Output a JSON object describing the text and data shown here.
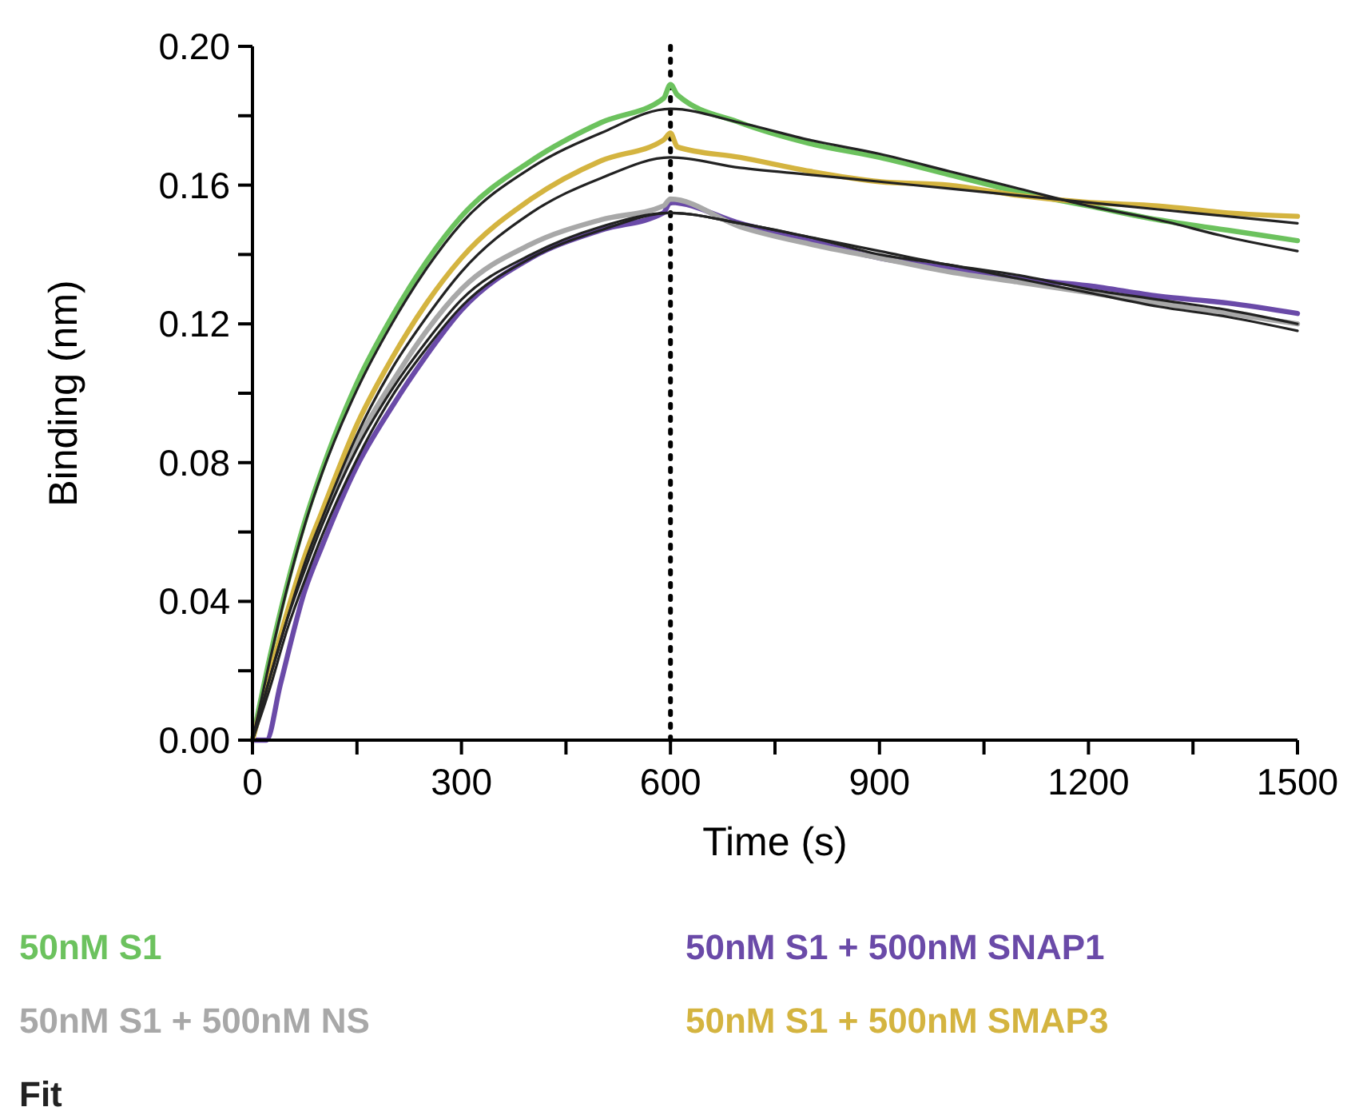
{
  "chart_data": {
    "type": "line",
    "xlabel": "Time (s)",
    "ylabel": "Binding (nm)",
    "xlim": [
      0,
      1500
    ],
    "ylim": [
      0,
      0.2
    ],
    "xticks": [
      0,
      {
        "value": 150,
        "label": null
      },
      300,
      {
        "value": 450,
        "label": null
      },
      600,
      {
        "value": 750,
        "label": null
      },
      900,
      {
        "value": 1050,
        "label": null
      },
      1200,
      {
        "value": 1350,
        "label": null
      },
      1500
    ],
    "yticks": [
      {
        "value": 0,
        "label": "0.00"
      },
      {
        "value": 0.02,
        "label": null
      },
      {
        "value": 0.04,
        "label": "0.04"
      },
      {
        "value": 0.06,
        "label": null
      },
      {
        "value": 0.08,
        "label": "0.08"
      },
      {
        "value": 0.1,
        "label": null
      },
      {
        "value": 0.12,
        "label": "0.12"
      },
      {
        "value": 0.14,
        "label": null
      },
      {
        "value": 0.16,
        "label": "0.16"
      },
      {
        "value": 0.18,
        "label": null
      },
      {
        "value": 0.2,
        "label": "0.20"
      }
    ],
    "grid": false,
    "legend": "bottom",
    "marker": "none",
    "line_style": "solid",
    "ref_lines": [
      {
        "axis": "x",
        "value": 600,
        "color": "#000000",
        "line_style": "dotted"
      }
    ],
    "series": [
      {
        "name": "50nM S1",
        "color": "#6cc25e",
        "x": [
          0,
          25,
          50,
          75,
          100,
          150,
          200,
          250,
          300,
          400,
          500,
          590,
          600,
          610,
          700,
          800,
          900,
          1000,
          1100,
          1200,
          1300,
          1400,
          1500
        ],
        "values": [
          0,
          0.024,
          0.045,
          0.063,
          0.078,
          0.103,
          0.122,
          0.138,
          0.151,
          0.167,
          0.178,
          0.185,
          0.189,
          0.186,
          0.178,
          0.172,
          0.168,
          0.163,
          0.158,
          0.154,
          0.15,
          0.147,
          0.144
        ]
      },
      {
        "name": "50nM S1 + 500nM SNAP1",
        "color": "#6a4aa8",
        "x": [
          0,
          20,
          40,
          75,
          100,
          150,
          200,
          250,
          300,
          400,
          500,
          590,
          600,
          700,
          800,
          900,
          1000,
          1100,
          1200,
          1300,
          1400,
          1500
        ],
        "values": [
          0,
          0,
          0.016,
          0.043,
          0.056,
          0.079,
          0.096,
          0.111,
          0.124,
          0.139,
          0.147,
          0.152,
          0.155,
          0.149,
          0.144,
          0.139,
          0.136,
          0.133,
          0.131,
          0.128,
          0.126,
          0.123
        ]
      },
      {
        "name": "50nM S1 + 500nM NS",
        "color": "#a8a8a8",
        "x": [
          0,
          25,
          50,
          75,
          100,
          150,
          200,
          250,
          300,
          400,
          500,
          590,
          600,
          700,
          800,
          900,
          1000,
          1100,
          1200,
          1300,
          1400,
          1500
        ],
        "values": [
          0,
          0.019,
          0.036,
          0.051,
          0.063,
          0.086,
          0.103,
          0.118,
          0.13,
          0.143,
          0.15,
          0.154,
          0.156,
          0.148,
          0.143,
          0.139,
          0.135,
          0.132,
          0.129,
          0.126,
          0.123,
          0.12
        ]
      },
      {
        "name": "50nM S1 + 500nM SMAP3",
        "color": "#d4b440",
        "x": [
          0,
          25,
          50,
          75,
          100,
          150,
          200,
          250,
          300,
          400,
          500,
          590,
          600,
          610,
          700,
          800,
          900,
          1000,
          1100,
          1200,
          1300,
          1400,
          1500
        ],
        "values": [
          0,
          0.019,
          0.037,
          0.053,
          0.066,
          0.091,
          0.11,
          0.126,
          0.139,
          0.156,
          0.167,
          0.173,
          0.175,
          0.171,
          0.168,
          0.164,
          0.161,
          0.16,
          0.157,
          0.155,
          0.154,
          0.152,
          0.151
        ]
      },
      {
        "name": "Fit",
        "color": "#222222",
        "x": [
          0,
          25,
          50,
          75,
          100,
          150,
          200,
          250,
          300,
          400,
          500,
          600,
          700,
          800,
          900,
          1000,
          1100,
          1200,
          1300,
          1400,
          1500
        ],
        "values": [
          0,
          0.023,
          0.044,
          0.062,
          0.077,
          0.101,
          0.12,
          0.136,
          0.149,
          0.165,
          0.175,
          0.182,
          0.178,
          0.173,
          0.169,
          0.164,
          0.159,
          0.154,
          0.15,
          0.145,
          0.141
        ]
      },
      {
        "color": "#222222",
        "x": [
          0,
          25,
          50,
          75,
          100,
          150,
          200,
          250,
          300,
          400,
          500,
          600,
          700,
          800,
          900,
          1000,
          1100,
          1200,
          1300,
          1400,
          1500
        ],
        "values": [
          0,
          0.018,
          0.035,
          0.051,
          0.064,
          0.088,
          0.107,
          0.122,
          0.135,
          0.152,
          0.162,
          0.168,
          0.165,
          0.163,
          0.161,
          0.159,
          0.157,
          0.155,
          0.153,
          0.151,
          0.149
        ]
      },
      {
        "color": "#222222",
        "x": [
          0,
          25,
          50,
          75,
          100,
          150,
          200,
          250,
          300,
          400,
          500,
          600,
          700,
          800,
          900,
          1000,
          1100,
          1200,
          1300,
          1400,
          1500
        ],
        "values": [
          0,
          0.018,
          0.035,
          0.049,
          0.062,
          0.084,
          0.101,
          0.115,
          0.127,
          0.14,
          0.148,
          0.152,
          0.149,
          0.145,
          0.14,
          0.137,
          0.133,
          0.129,
          0.125,
          0.122,
          0.118
        ]
      },
      {
        "color": "#222222",
        "x": [
          0,
          25,
          50,
          75,
          100,
          150,
          200,
          250,
          300,
          400,
          500,
          600,
          700,
          800,
          900,
          1000,
          1100,
          1200,
          1300,
          1400,
          1500
        ],
        "values": [
          0,
          0.015,
          0.032,
          0.046,
          0.059,
          0.081,
          0.099,
          0.113,
          0.125,
          0.139,
          0.147,
          0.152,
          0.149,
          0.145,
          0.141,
          0.137,
          0.134,
          0.13,
          0.127,
          0.124,
          0.12
        ]
      }
    ]
  }
}
